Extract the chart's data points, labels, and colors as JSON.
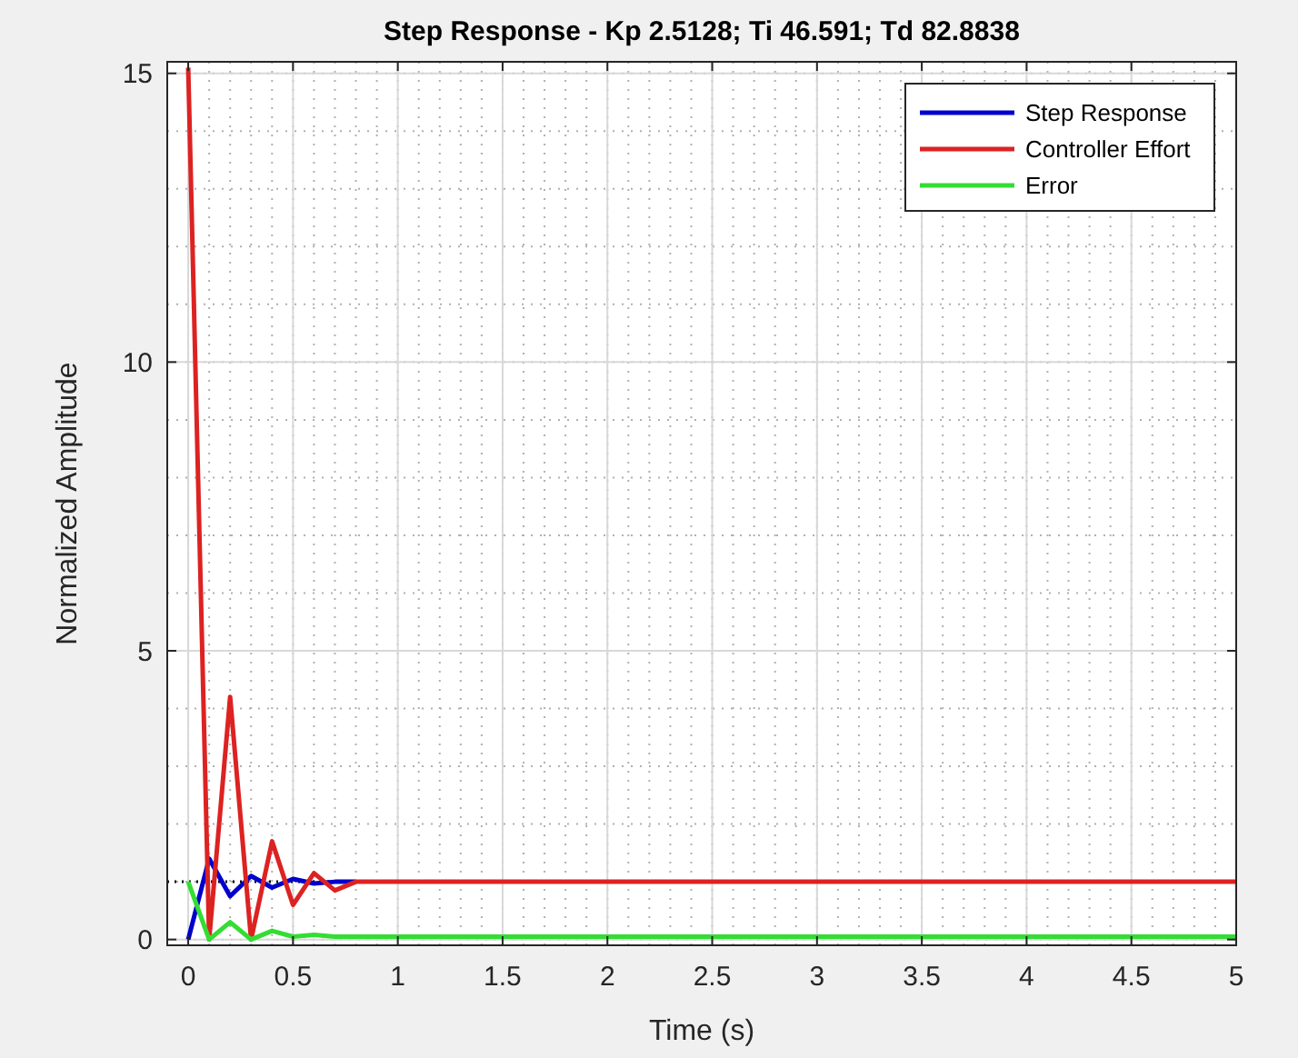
{
  "chart_data": {
    "type": "line",
    "title": "Step Response - Kp 2.5128; Ti 46.591; Td 82.8838",
    "xlabel": "Time (s)",
    "ylabel": "Normalized Amplitude",
    "xlim": [
      -0.1,
      5
    ],
    "ylim": [
      -0.1,
      15.2
    ],
    "xticks": [
      0,
      0.5,
      1,
      1.5,
      2,
      2.5,
      3,
      3.5,
      4,
      4.5,
      5
    ],
    "yticks": [
      0,
      5,
      10,
      15
    ],
    "grid": true,
    "legend": "top right",
    "line_style": "solid",
    "ref_lines": [
      {
        "axis": "y",
        "value": 1,
        "color": "#000000",
        "line_style": "dotted"
      }
    ],
    "series": [
      {
        "name": "Step Response",
        "color": "#0000cc",
        "x": [
          0,
          0.1,
          0.2,
          0.3,
          0.4,
          0.5,
          0.6,
          0.7,
          0.8
        ],
        "values": [
          0,
          1.4,
          0.75,
          1.1,
          0.9,
          1.05,
          0.97,
          1,
          1
        ]
      },
      {
        "name": "Controller Effort",
        "color": "#dd2222",
        "x": [
          0,
          0.1,
          0.2,
          0.3,
          0.4,
          0.5,
          0.6,
          0.7,
          0.8,
          5
        ],
        "values": [
          15.1,
          0,
          4.2,
          0,
          1.7,
          0.6,
          1.15,
          0.85,
          1,
          1
        ]
      },
      {
        "name": "Error",
        "color": "#33dd33",
        "x": [
          0,
          0.1,
          0.2,
          0.3,
          0.4,
          0.5,
          0.6,
          0.7,
          0.8,
          5
        ],
        "values": [
          1,
          0,
          0.3,
          0,
          0.15,
          0.05,
          0.08,
          0.05,
          0.05,
          0.05
        ]
      }
    ]
  }
}
